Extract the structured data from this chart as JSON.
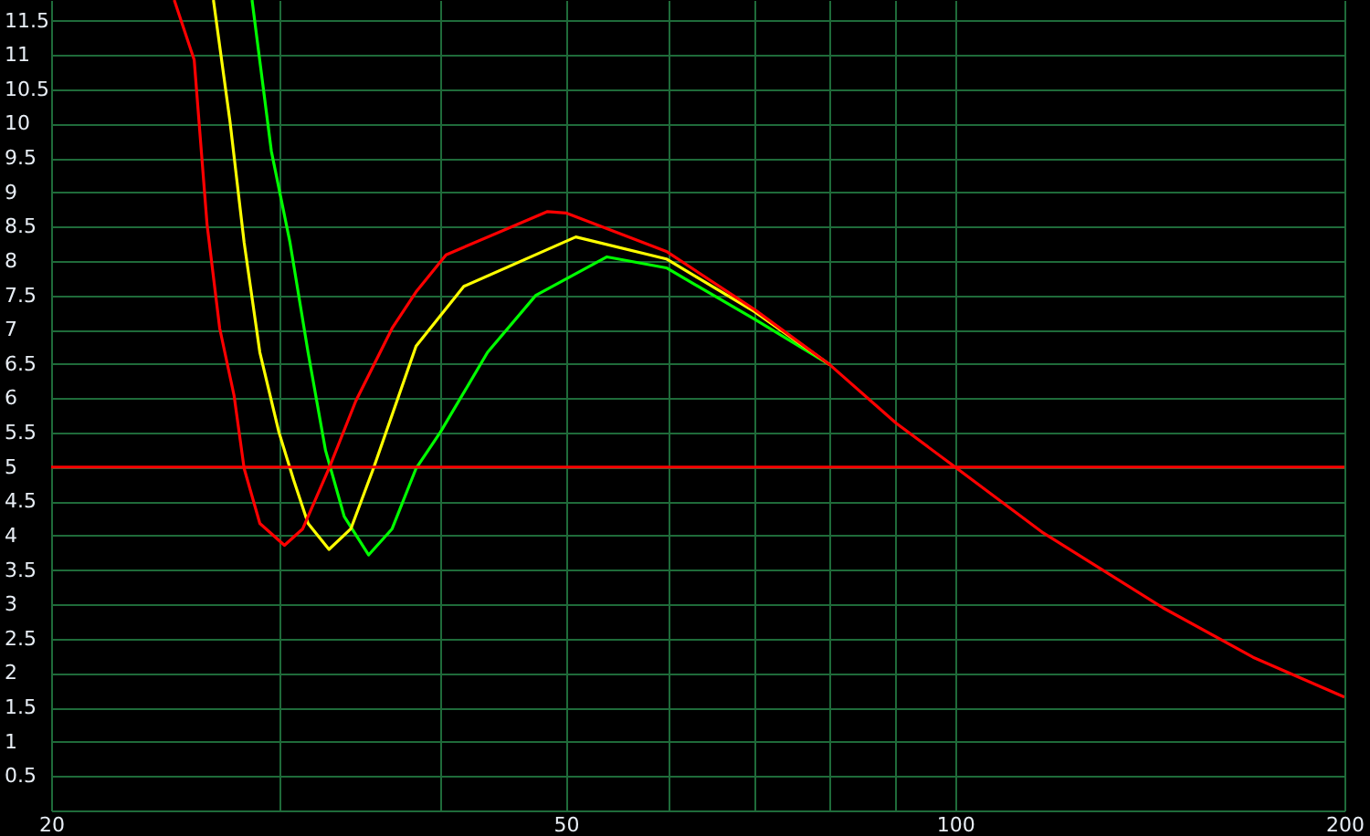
{
  "chart_data": {
    "type": "line",
    "log": "x",
    "grid": true,
    "xlim": [
      20,
      200
    ],
    "xticks": [
      20,
      {
        "value": 30,
        "label": null
      },
      {
        "value": 40,
        "label": null
      },
      50,
      {
        "value": 60,
        "label": null
      },
      {
        "value": 70,
        "label": null
      },
      {
        "value": 80,
        "label": null
      },
      {
        "value": 90,
        "label": null
      },
      100,
      200
    ],
    "ylim": [
      0,
      11.8
    ],
    "yticks": [
      0.5,
      1,
      1.5,
      2,
      2.5,
      3,
      3.5,
      4,
      4.5,
      5,
      5.5,
      6,
      6.5,
      7,
      7.5,
      8,
      8.5,
      9,
      9.5,
      10,
      10.5,
      11,
      11.5
    ],
    "ref_lines": [
      {
        "axis": "y",
        "value": 5,
        "color": "#ff0000"
      }
    ],
    "series": [
      {
        "color": "#00ff00",
        "x": [
          28.6,
          29.6,
          30.6,
          31.6,
          32.6,
          33.7,
          35.2,
          36.7,
          38.3,
          40.0,
          43.5,
          47.4,
          53.8,
          59.8,
          70,
          80
        ],
        "values": [
          11.8,
          9.6,
          8.27,
          6.67,
          5.24,
          4.28,
          3.72,
          4.1,
          4.98,
          5.51,
          6.67,
          7.5,
          8.06,
          7.9,
          7.15,
          6.49
        ]
      },
      {
        "color": "#ffff00",
        "x": [
          26.7,
          27.5,
          28.2,
          29.0,
          30.0,
          30.8,
          31.6,
          32.8,
          34.1,
          35.5,
          38.3,
          41.7,
          50.9,
          59.8,
          70,
          80
        ],
        "values": [
          11.8,
          10.03,
          8.27,
          6.67,
          5.51,
          4.81,
          4.18,
          3.8,
          4.1,
          4.98,
          6.76,
          7.63,
          8.35,
          8.03,
          7.26,
          6.49
        ]
      },
      {
        "color": "#ff0000",
        "x": [
          24.9,
          25.8,
          26.4,
          27.0,
          27.7,
          28.2,
          29.0,
          30.3,
          31.3,
          32.8,
          34.4,
          36.7,
          38.3,
          40.4,
          48.4,
          50,
          59.8,
          70,
          80,
          90,
          100,
          117,
          144.8,
          170,
          200
        ],
        "values": [
          11.8,
          10.93,
          8.53,
          7.02,
          6.04,
          4.98,
          4.18,
          3.86,
          4.1,
          4.98,
          5.96,
          7.02,
          7.55,
          8.09,
          8.72,
          8.7,
          8.14,
          7.29,
          6.49,
          5.64,
          5.0,
          4.04,
          2.95,
          2.23,
          1.65
        ]
      }
    ]
  }
}
